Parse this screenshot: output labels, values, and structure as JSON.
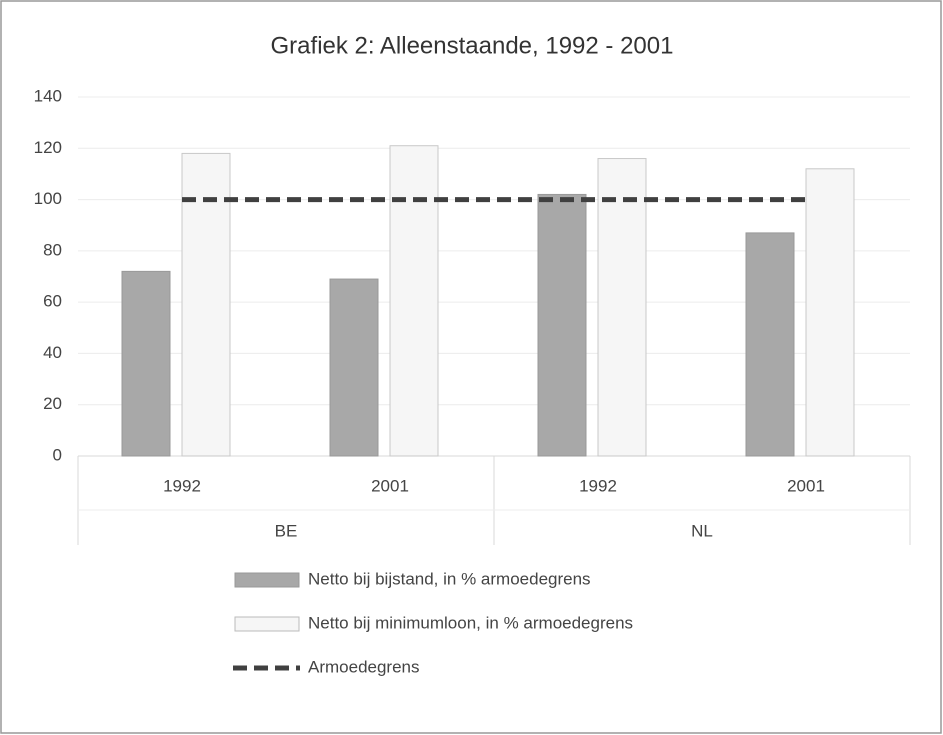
{
  "chart_data": {
    "type": "bar",
    "title": "Grafiek 2: Alleenstaande, 1992 - 2001",
    "categories": [
      "1992",
      "2001",
      "1992",
      "2001"
    ],
    "groups": [
      "BE",
      "NL"
    ],
    "series": [
      {
        "name": "Netto bij bijstand, in % armoedegrens",
        "color": "#a8a8a8",
        "values": [
          72,
          69,
          102,
          87
        ]
      },
      {
        "name": "Netto bij minimumloon, in % armoedegrens",
        "color": "#f6f6f6",
        "values": [
          118,
          121,
          116,
          112
        ]
      },
      {
        "name": "Armoedegrens",
        "type": "line",
        "color": "#404040",
        "values": [
          100,
          100,
          100,
          100
        ]
      }
    ],
    "ylim": [
      0,
      140
    ],
    "yticks": [
      0,
      20,
      40,
      60,
      80,
      100,
      120,
      140
    ],
    "grid": true
  }
}
